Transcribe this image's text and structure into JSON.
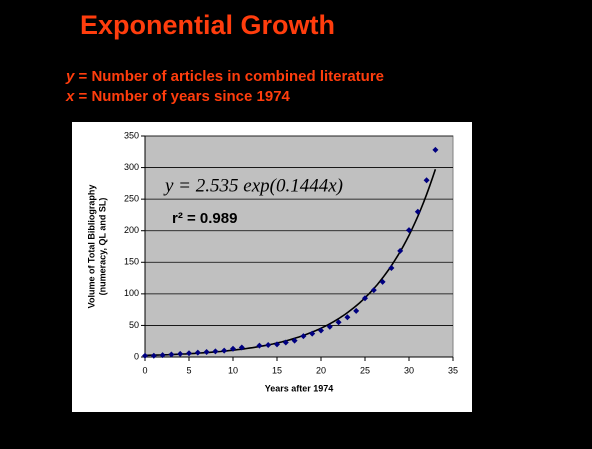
{
  "slide": {
    "title": "Exponential Growth",
    "lines": [
      {
        "var": "y",
        "text": " = Number of articles in combined literature"
      },
      {
        "var": "x",
        "text": " = Number of years since 1974"
      }
    ]
  },
  "chart_data": {
    "type": "scatter",
    "xlabel": "Years after 1974",
    "ylabel": [
      "Volume of Total Bibliography",
      "(numeracy, QL and SL)"
    ],
    "annotations": [
      "y = 2.535 exp(0.1444x)",
      "r² = 0.989"
    ],
    "fit": {
      "a": 2.535,
      "b": 0.1444
    },
    "x": [
      0,
      1,
      2,
      3,
      4,
      5,
      6,
      7,
      8,
      9,
      10,
      11,
      13,
      14,
      15,
      16,
      17,
      18,
      19,
      20,
      21,
      22,
      23,
      24,
      25,
      26,
      27,
      28,
      29,
      30,
      31,
      32,
      33
    ],
    "series": [
      {
        "name": "Bibliography",
        "color": "#000080",
        "values": [
          2,
          2,
          3,
          4,
          5,
          6,
          7,
          8,
          9,
          10,
          13,
          15,
          18,
          19,
          20,
          23,
          26,
          33,
          37,
          42,
          48,
          55,
          63,
          73,
          93,
          106,
          119,
          141,
          168,
          201,
          230,
          280,
          328
        ]
      }
    ],
    "xlim": [
      0,
      35
    ],
    "xticks": [
      0,
      5,
      10,
      15,
      20,
      25,
      30,
      35
    ],
    "ylim": [
      0,
      350
    ],
    "yticks": [
      0,
      50,
      100,
      150,
      200,
      250,
      300,
      350
    ],
    "grid": true
  }
}
